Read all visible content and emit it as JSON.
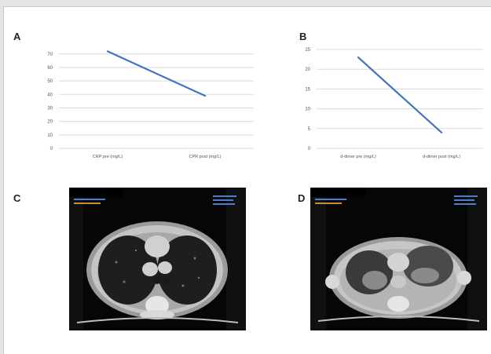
{
  "panels": {
    "a": "A",
    "b": "B",
    "c": "C",
    "d": "D"
  },
  "chart_data": [
    {
      "type": "line",
      "categories": [
        "CRP pre (mg/L)",
        "CPR post (mg/L)"
      ],
      "series": [
        {
          "values": [
            72,
            39
          ],
          "color": "#4472c4"
        }
      ],
      "yticks": [
        0,
        10,
        20,
        30,
        40,
        50,
        60,
        70
      ],
      "ylim": [
        0,
        80
      ],
      "grid": true,
      "gridColor": "#d9d9d9"
    },
    {
      "type": "line",
      "categories": [
        "d-dimer pre (mg/L)",
        "d-dimer post (mg/L)"
      ],
      "series": [
        {
          "values": [
            23,
            4
          ],
          "color": "#4472c4"
        }
      ],
      "yticks": [
        0,
        5,
        10,
        15,
        20,
        25
      ],
      "ylim": [
        0,
        25
      ],
      "grid": true,
      "gridColor": "#d9d9d9"
    }
  ]
}
